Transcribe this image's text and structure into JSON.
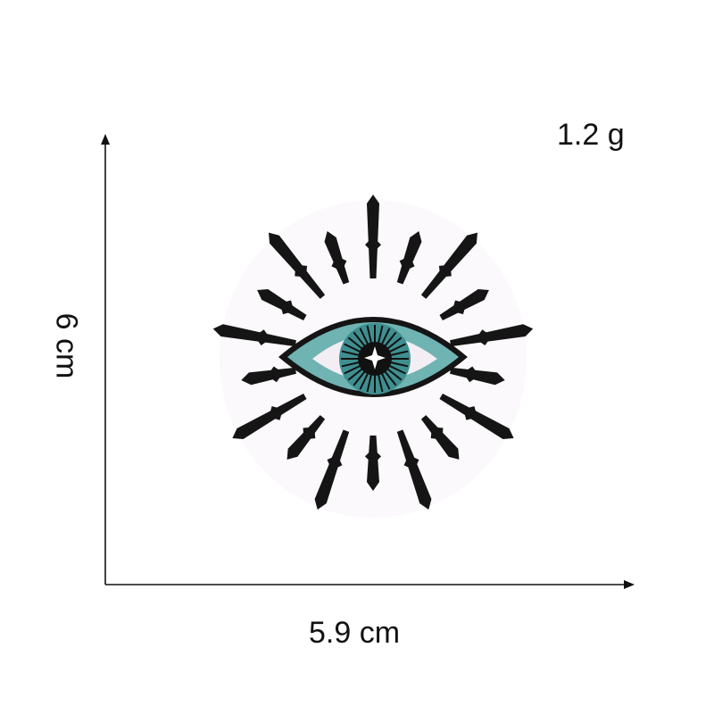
{
  "dimensions": {
    "height_label": "6 cm",
    "width_label": "5.9 cm",
    "weight_label": "1.2 g"
  },
  "colors": {
    "axis": "#111111",
    "rays": "#151515",
    "iris_outer": "#6fb3b3",
    "iris_inner": "#3f8f91",
    "sclera": "#f3eef3",
    "pupil": "#111111",
    "highlight": "#ffffff"
  },
  "icons": [
    "evil-eye-patch",
    "arrow-up-icon",
    "arrow-right-icon"
  ]
}
